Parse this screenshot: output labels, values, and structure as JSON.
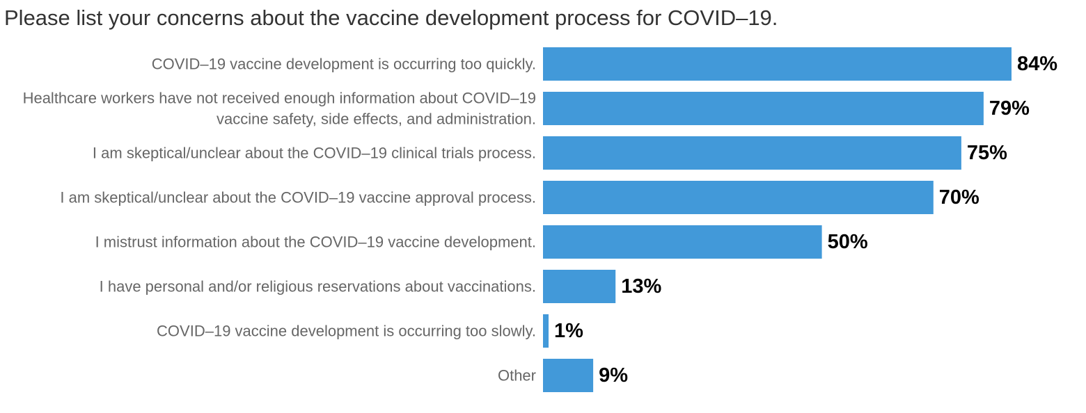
{
  "chart_data": {
    "type": "bar",
    "orientation": "horizontal",
    "title": "Please list your concerns about the vaccine development process for COVID–19.",
    "categories": [
      "COVID–19 vaccine development is occurring too quickly.",
      "Healthcare workers have not received enough information about COVID–19 vaccine safety, side effects, and administration.",
      "I am skeptical/unclear about the COVID–19 clinical trials process.",
      "I am skeptical/unclear about the COVID–19 vaccine approval process.",
      "I mistrust information about the COVID–19 vaccine development.",
      "I have personal and/or religious reservations about vaccinations.",
      "COVID–19 vaccine development is occurring too slowly.",
      "Other"
    ],
    "category_lines": [
      [
        "COVID–19 vaccine development is occurring too quickly."
      ],
      [
        "Healthcare workers have not received enough information about COVID–19",
        "vaccine safety, side effects, and administration."
      ],
      [
        "I am skeptical/unclear about the COVID–19 clinical trials process."
      ],
      [
        "I am skeptical/unclear about the COVID–19 vaccine approval process."
      ],
      [
        "I mistrust information about the COVID–19 vaccine development."
      ],
      [
        "I have personal and/or religious reservations about vaccinations."
      ],
      [
        "COVID–19 vaccine development is occurring too slowly."
      ],
      [
        "Other"
      ]
    ],
    "values": [
      84,
      79,
      75,
      70,
      50,
      13,
      1,
      9
    ],
    "value_labels": [
      "84%",
      "79%",
      "75%",
      "70%",
      "50%",
      "13%",
      "1%",
      "9%"
    ],
    "unit": "%",
    "xlim": [
      0,
      84
    ],
    "grid": false,
    "legend": "none",
    "bar_color": "#4299d9"
  }
}
